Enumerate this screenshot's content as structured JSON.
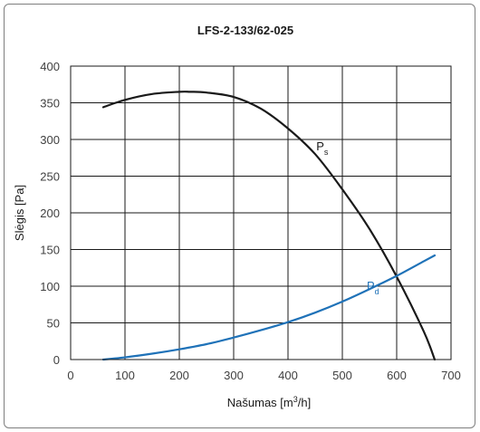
{
  "chart_data": {
    "type": "line",
    "title": "LFS-2-133/62-025",
    "xlabel": "Našumas [m",
    "xlabel_sup": "3",
    "xlabel_end": "/h]",
    "ylabel": "Slėgis  [Pa]",
    "xlim": [
      0,
      700
    ],
    "ylim": [
      0,
      400
    ],
    "xticks": [
      "0",
      "100",
      "200",
      "300",
      "400",
      "500",
      "600",
      "700"
    ],
    "yticks": [
      "0",
      "50",
      "100",
      "150",
      "200",
      "250",
      "300",
      "350",
      "400"
    ],
    "grid": true,
    "series": [
      {
        "name": "P",
        "sub": "s",
        "color": "#1a1a1a",
        "x": [
          60,
          100,
          150,
          200,
          220,
          250,
          300,
          350,
          400,
          450,
          500,
          550,
          600,
          650,
          670
        ],
        "y": [
          344,
          354,
          362,
          365,
          365,
          364,
          358,
          342,
          315,
          280,
          232,
          178,
          113,
          38,
          0
        ]
      },
      {
        "name": "P",
        "sub": "d",
        "color": "#1f72b8",
        "x": [
          60,
          100,
          150,
          200,
          250,
          300,
          350,
          400,
          450,
          500,
          550,
          600,
          650,
          670
        ],
        "y": [
          0,
          3,
          8,
          14,
          21,
          30,
          40,
          51,
          64,
          79,
          96,
          114,
          134,
          142
        ]
      }
    ]
  }
}
